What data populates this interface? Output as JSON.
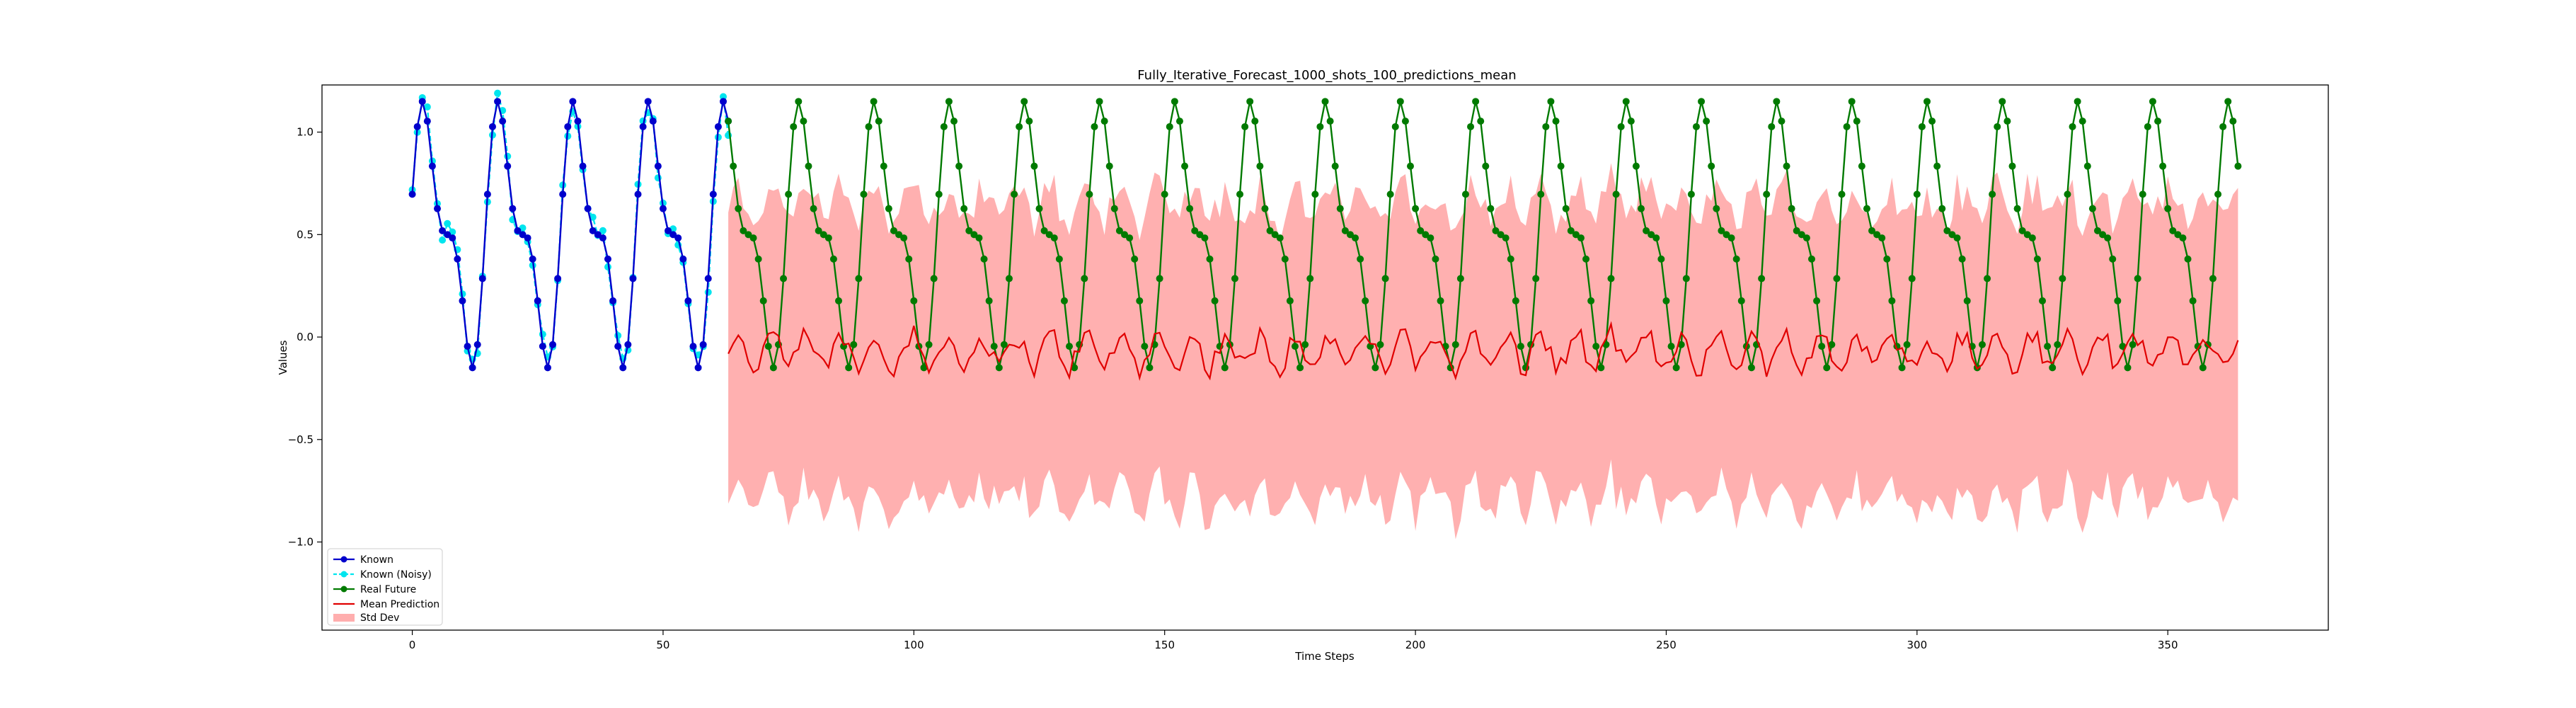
{
  "chart_data": {
    "type": "line",
    "title": "Fully_Iterative_Forecast_1000_shots_100_predictions_mean",
    "xlabel": "Time Steps",
    "ylabel": "Values",
    "xlim": [
      -18,
      382
    ],
    "ylim": [
      -1.43,
      1.23
    ],
    "xticks": [
      0,
      50,
      100,
      150,
      200,
      250,
      300,
      350
    ],
    "yticks": [
      -1.0,
      -0.5,
      0.0,
      0.5,
      1.0
    ],
    "grid": false,
    "legend_position": "lower-left",
    "known_range": [
      0,
      63
    ],
    "future_range": [
      63,
      364
    ],
    "signal_model": {
      "base": 0.5,
      "a1": 0.5,
      "p1": 15,
      "ph1": 0.2,
      "a2": 0.25,
      "p2": 7.5,
      "ph2": 0.4
    },
    "mean_prediction": {
      "center": -0.07,
      "amplitude": 0.08
    },
    "std_band": {
      "half_width": 0.72
    },
    "series": [
      {
        "name": "Known",
        "color": "#0000cc",
        "marker": "circle"
      },
      {
        "name": "Known (Noisy)",
        "color": "#00e5ee",
        "marker": "circle"
      },
      {
        "name": "Real Future",
        "color": "#007a00",
        "marker": "circle"
      },
      {
        "name": "Mean Prediction",
        "color": "#e00000",
        "marker": "none"
      },
      {
        "name": "Std Dev",
        "color": "#ff9a9a",
        "marker": "band"
      }
    ],
    "colors": {
      "known": "#0000cc",
      "noisy": "#00e5ee",
      "future": "#007a00",
      "mean": "#e00000",
      "band": "#ff9a9a"
    }
  },
  "legend": {
    "known": "Known",
    "noisy": "Known (Noisy)",
    "future": "Real Future",
    "mean": "Mean Prediction",
    "std": "Std Dev"
  }
}
